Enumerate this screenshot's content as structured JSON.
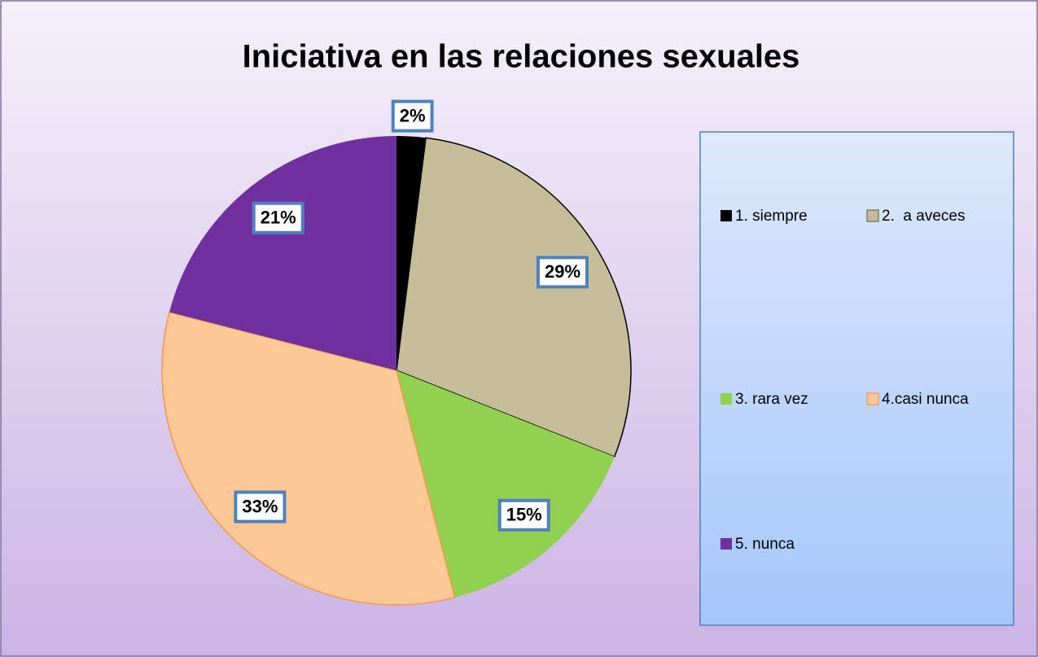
{
  "chart_data": {
    "type": "pie",
    "title": "Iniciativa en las relaciones sexuales",
    "categories": [
      "1. siempre",
      "2.  a aveces",
      "3. rara vez",
      "4.casi nunca",
      "5. nunca"
    ],
    "values": [
      2,
      29,
      15,
      33,
      21
    ],
    "value_labels": [
      "2%",
      "29%",
      "15%",
      "33%",
      "21%"
    ],
    "colors": [
      "#000000",
      "#c4bd97",
      "#92d050",
      "#fbc896",
      "#7030a0"
    ],
    "legend": "right"
  }
}
